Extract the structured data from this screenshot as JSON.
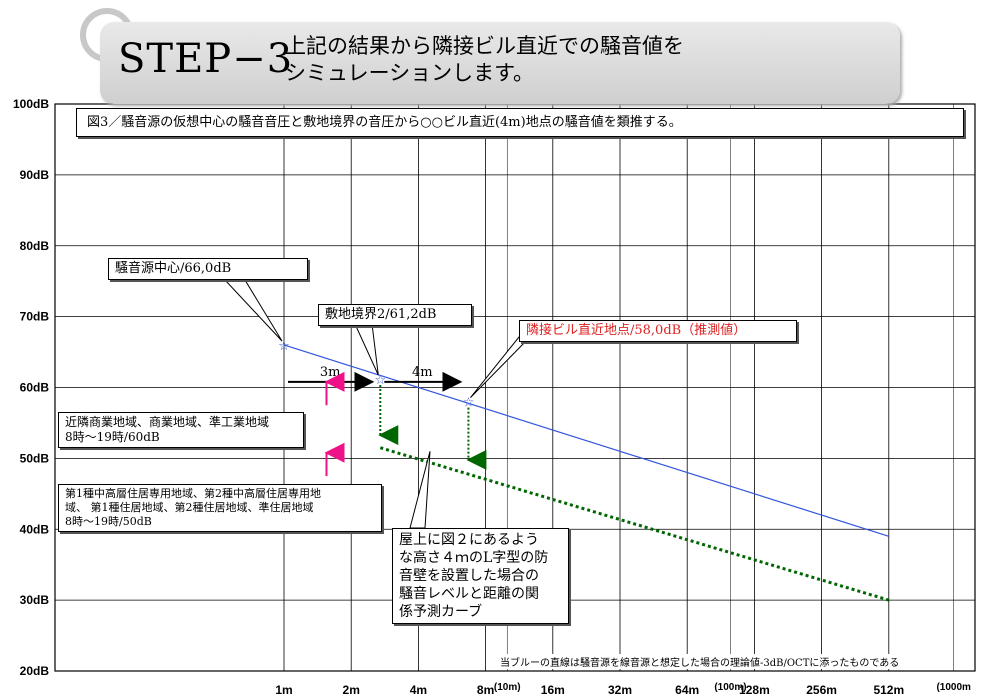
{
  "header": {
    "step": "STEP−3",
    "line1": "上記の結果から隣接ビル直近での騒音値を",
    "line2": "シミュレーションします。"
  },
  "chart_data": {
    "type": "line",
    "caption": "図3／騒音源の仮想中心の騒音音圧と敷地境界の音圧から○○ビル直近(4m)地点の騒音値を類推する。",
    "x_ticks": [
      {
        "label": "1m",
        "value": 1
      },
      {
        "label": "2m",
        "value": 2
      },
      {
        "label": "4m",
        "value": 4
      },
      {
        "label": "8m",
        "value": 8
      },
      {
        "label": "(10m)",
        "value": 10
      },
      {
        "label": "16m",
        "value": 16
      },
      {
        "label": "32m",
        "value": 32
      },
      {
        "label": "64m",
        "value": 64
      },
      {
        "label": "(100m)",
        "value": 100
      },
      {
        "label": "128m",
        "value": 128
      },
      {
        "label": "256m",
        "value": 256
      },
      {
        "label": "512m",
        "value": 512
      },
      {
        "label": "(1000m",
        "value": 1000
      }
    ],
    "y_ticks": [
      "100dB",
      "90dB",
      "80dB",
      "70dB",
      "60dB",
      "50dB",
      "40dB",
      "30dB",
      "20dB"
    ],
    "ylim": [
      20,
      100
    ],
    "xscale": "log",
    "grid": true,
    "series": [
      {
        "color": "#3355dd",
        "style": "solid",
        "points": [
          [
            1,
            66.0
          ],
          [
            512,
            39
          ]
        ]
      },
      {
        "color": "#006600",
        "style": "dotted",
        "points": [
          [
            2.7,
            51.5
          ],
          [
            512,
            30
          ]
        ]
      }
    ],
    "markers": [
      {
        "x": 1,
        "y": 66.0
      },
      {
        "x": 2.7,
        "y": 61.2
      },
      {
        "x": 6.7,
        "y": 58.0
      }
    ],
    "drops": [
      {
        "x": 2.7,
        "y_from": 61.2,
        "y_to": 53.0
      },
      {
        "x": 6.7,
        "y_from": 58.0,
        "y_to": 49.5
      }
    ],
    "spans": [
      {
        "label": "3m",
        "x_from": 1,
        "x_to": 2.7
      },
      {
        "label": "4m",
        "x_from": 2.7,
        "x_to": 6.7
      }
    ],
    "up_arrows": [
      {
        "x": 1.55,
        "y_from": 57.5,
        "y_to": 60.8
      },
      {
        "x": 1.55,
        "y_from": 47.5,
        "y_to": 50.8
      }
    ],
    "annotations": {
      "source": "騒音源中心/66,0dB",
      "boundary": "敷地境界2/61,2dB",
      "neighbor": "隣接ビル直近地点/58,0dB（推測値）",
      "zone60": "近隣商業地域、商業地域、準工業地域\n8時～19時/60dB",
      "zone50": "第1種中高層住居専用地域、第2種中高層住居専用地\n域、 第1種住居地域、第2種住居地域、準住居地域\n8時～19時/50dB",
      "barrier": "屋上に図２にあるよう\nな高さ４ｍのL字型の防\n音壁を設置した場合の\n騒音レベルと距離の関\n係予測カーブ"
    },
    "footnote": "当ブルーの直線は騒音源を線音源と想定した場合の理論値-3dB/OCTに添ったものである",
    "accent": "#dd2222"
  }
}
